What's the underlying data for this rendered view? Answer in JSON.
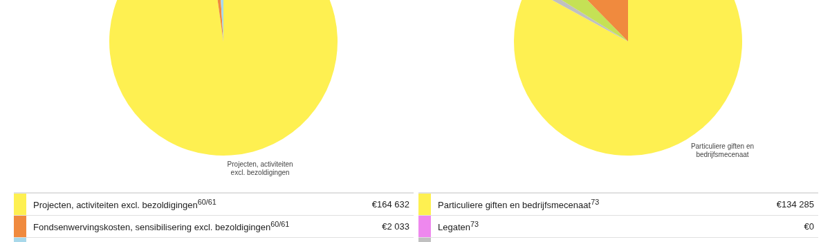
{
  "chart_data": [
    {
      "type": "pie",
      "categories": [
        "Projecten, activiteiten excl. bezoldigingen$^{60/61}$",
        "Fondsenwervingskosten, sensibilisering excl. bezoldigingen$^{60/61}$",
        null
      ],
      "values": [
        164632,
        2033,
        1700
      ],
      "colors": [
        "#fef051",
        "#f08a3e",
        "#a8d8ea"
      ],
      "value_labels": [
        "€164 632",
        "€2 033",
        null
      ],
      "legend": "bottom",
      "annotations": [
        "Projecten, activiteiten excl. bezoldigingen"
      ]
    },
    {
      "type": "pie",
      "categories": [
        "Particuliere giften en bedrijfsmecenaat$^{73}$",
        "Legaten$^{73}$",
        null,
        null,
        null
      ],
      "values": [
        134285,
        0,
        1500,
        6100,
        20000
      ],
      "colors": [
        "#fef051",
        "#ee88ee",
        "#c0c0c0",
        "#c5e155",
        "#f08a3e"
      ],
      "value_labels": [
        "€134 285",
        "€0",
        null,
        null,
        null
      ],
      "legend": "bottom",
      "annotations": [
        "Particuliere giften en bedrijfsmecenaat"
      ]
    }
  ]
}
